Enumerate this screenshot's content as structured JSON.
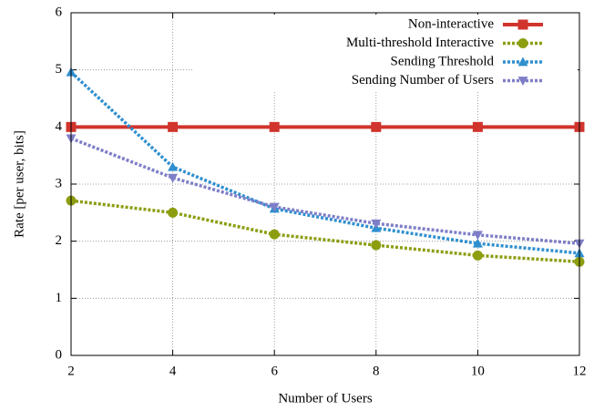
{
  "chart_data": {
    "type": "line",
    "xlabel": "Number of Users",
    "ylabel": "Rate [per user, bits]",
    "x": [
      2,
      4,
      6,
      8,
      10,
      12
    ],
    "series": [
      {
        "name": "Non-interactive",
        "color": "#d0342c",
        "marker": "square",
        "dash": "solid",
        "values": [
          4,
          4,
          4,
          4,
          4,
          4
        ]
      },
      {
        "name": "Multi-threshold Interactive",
        "color": "#8c9e10",
        "marker": "circle",
        "dash": "dotted",
        "values": [
          2.71,
          2.5,
          2.12,
          1.93,
          1.75,
          1.64
        ]
      },
      {
        "name": "Sending Threshold",
        "color": "#2f8fcf",
        "marker": "triangle-up",
        "dash": "dotted",
        "values": [
          4.96,
          3.3,
          2.57,
          2.23,
          1.96,
          1.79
        ]
      },
      {
        "name": "Sending Number of Users",
        "color": "#7e7ec8",
        "marker": "triangle-down",
        "dash": "dotted",
        "values": [
          3.8,
          3.11,
          2.6,
          2.31,
          2.11,
          1.96
        ]
      }
    ],
    "xlim": [
      2,
      12
    ],
    "xticks": [
      2,
      4,
      6,
      8,
      10,
      12
    ],
    "ylim": [
      0,
      6
    ],
    "yticks": [
      0,
      1,
      2,
      3,
      4,
      5,
      6
    ],
    "grid": true,
    "legend": "upper right"
  }
}
